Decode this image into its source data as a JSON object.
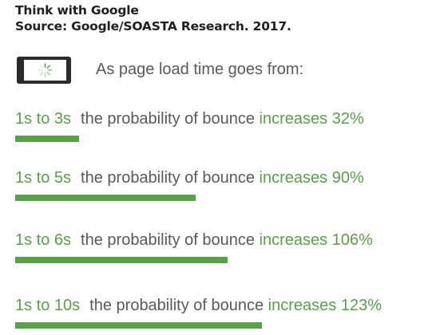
{
  "header": {
    "line1": "Think with Google",
    "line2": "Source: Google/SOASTA Research. 2017."
  },
  "intro": "As page load time goes from:",
  "icons": {
    "phone": "phone-loading-icon"
  },
  "colors": {
    "accent": "#5a9f4a",
    "text": "#595959",
    "heading": "#1f1f1f"
  },
  "chart_data": {
    "type": "bar",
    "categories": [
      "1s to 3s",
      "1s to 5s",
      "1s to 6s",
      "1s to 10s"
    ],
    "values": [
      32,
      90,
      106,
      123
    ],
    "unit": "%",
    "sentence": "the probability of bounce",
    "verb": "increases",
    "labels": [
      "32%",
      "90%",
      "106%",
      "123%"
    ],
    "title": "",
    "xlabel": "",
    "ylabel": ""
  }
}
